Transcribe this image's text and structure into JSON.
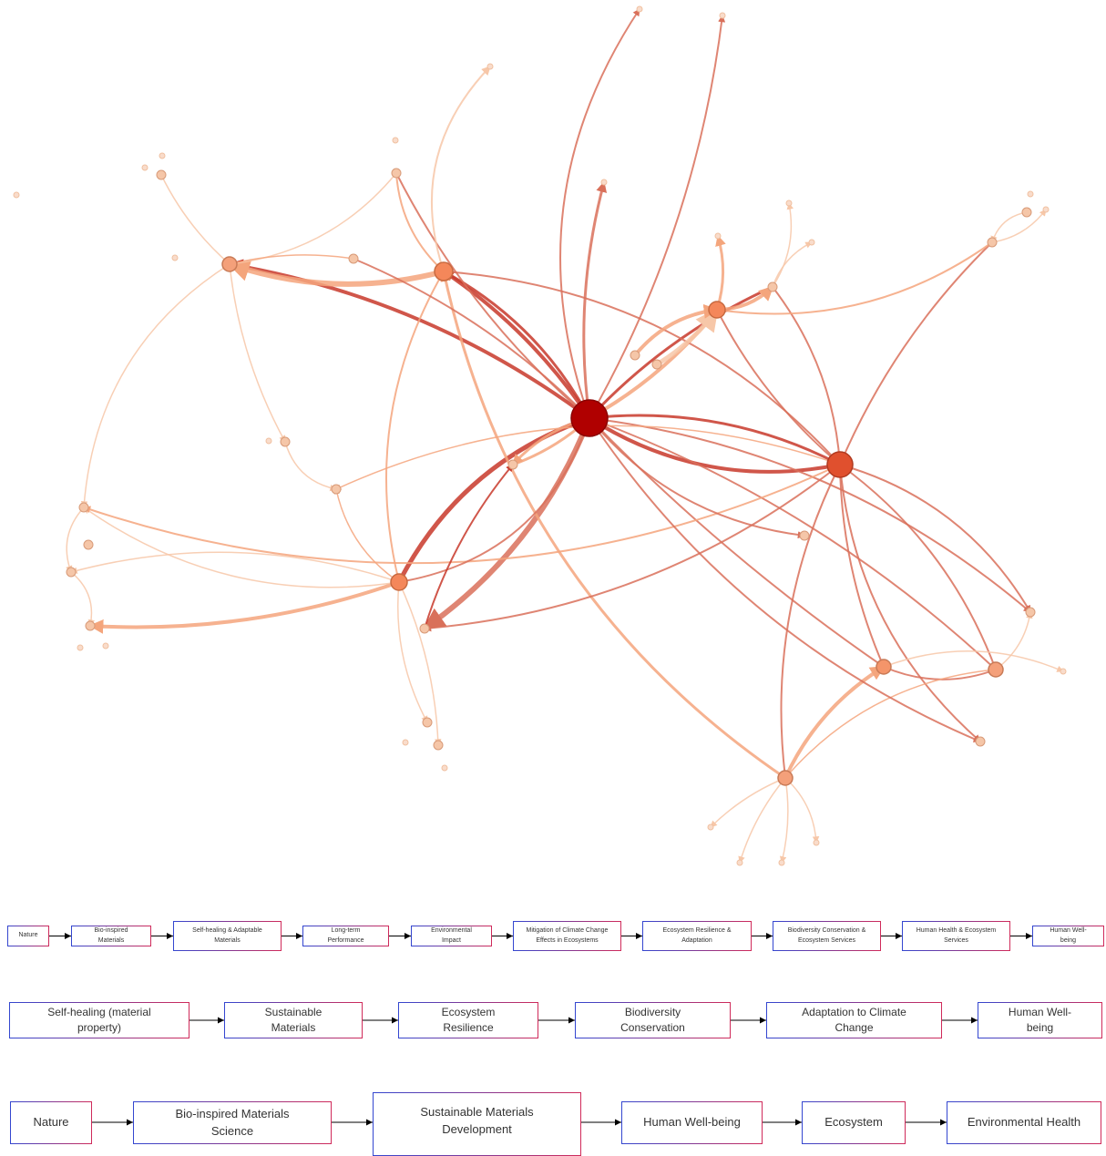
{
  "flows": [
    {
      "steps": [
        "Nature",
        "Bio-inspired Materials",
        "Self-healing & Adaptable Materials",
        "Long-term Performance",
        "Environmental Impact",
        "Mitigation of Climate Change Effects in Ecosystems",
        "Ecosystem Resilience & Adaptation",
        "Biodiversity Conservation & Ecosystem Services",
        "Human Health & Ecosystem Services",
        "Human Well-being"
      ]
    },
    {
      "steps": [
        "Self-healing (material property)",
        "Sustainable Materials",
        "Ecosystem Resilience",
        "Biodiversity Conservation",
        "Adaptation to Climate Change",
        "Human Well-being"
      ]
    },
    {
      "steps": [
        "Nature",
        "Bio-inspired Materials Science",
        "Sustainable Materials Development",
        "Human Well-being",
        "Ecosystem",
        "Environmental Health"
      ]
    }
  ]
}
